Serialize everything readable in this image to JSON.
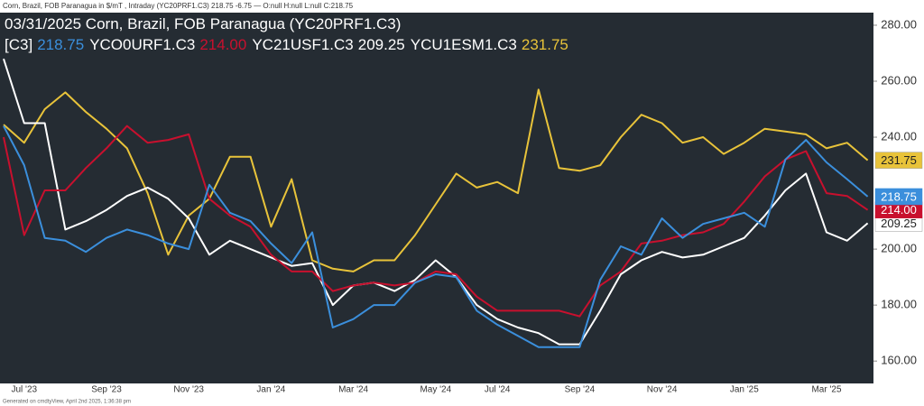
{
  "header": "Corn, Brazil, FOB Paranagua in $/mT , Intraday (YC20PRF1.C3) 218.75 -6.75 — O:null H:null L:null C:218.75",
  "footer": "Generated on cmdtyView, April 2nd 2025, 1:36:38 pm",
  "chart_data": {
    "type": "line",
    "categories": [
      null,
      "Jul '23",
      null,
      null,
      null,
      "Sep '23",
      null,
      null,
      null,
      "Nov '23",
      null,
      null,
      null,
      "Jan '24",
      null,
      null,
      null,
      "Mar '24",
      null,
      null,
      null,
      "May '24",
      null,
      null,
      "Jul '24",
      null,
      null,
      null,
      "Sep '24",
      null,
      null,
      null,
      "Nov '24",
      null,
      null,
      null,
      "Jan '25",
      null,
      null,
      null,
      "Mar '25",
      null,
      null
    ],
    "ylim": [
      152,
      284.5
    ],
    "yticks": [
      {
        "value": 160,
        "label": "160.00"
      },
      {
        "value": 180,
        "label": "180.00"
      },
      {
        "value": 200,
        "label": "200.00"
      },
      {
        "value": 240,
        "label": "240.00"
      },
      {
        "value": 260,
        "label": "260.00"
      },
      {
        "value": 280,
        "label": "280.00"
      }
    ],
    "series": [
      {
        "name": "03/31/2025 Corn, Brazil, FOB Paranagua (YC20PRF1.C3) [C3]",
        "color": "#3b8fdc",
        "values": [
          244,
          230,
          204,
          203,
          199,
          204,
          207,
          205,
          202,
          200,
          223,
          213,
          210,
          202,
          195,
          206,
          172,
          175,
          180,
          180,
          188,
          191,
          190,
          178,
          173,
          169,
          165,
          165,
          165,
          189,
          201,
          198,
          211,
          204,
          209,
          211,
          213,
          208,
          232,
          239,
          231,
          225,
          218.75
        ],
        "value_labels": [
          null,
          null,
          null,
          null,
          null,
          null,
          null,
          null,
          null,
          null,
          null,
          null,
          null,
          null,
          null,
          null,
          null,
          null,
          null,
          null,
          null,
          null,
          null,
          null,
          null,
          null,
          null,
          null,
          null,
          null,
          null,
          null,
          null,
          null,
          null,
          null,
          null,
          null,
          null,
          null,
          null,
          null,
          "218.75"
        ]
      },
      {
        "name": "YCO0URF1.C3",
        "color": "#c8102e",
        "values": [
          240,
          205,
          221,
          221,
          229,
          236,
          244,
          238,
          239,
          241,
          218,
          212,
          208,
          198,
          192,
          192,
          185,
          187,
          188,
          187,
          188,
          192,
          191,
          183,
          178,
          178,
          178,
          178,
          176,
          187,
          192,
          202,
          203,
          205,
          206,
          209,
          217,
          226,
          232,
          235,
          220,
          219,
          214
        ],
        "value_labels": [
          null,
          null,
          null,
          null,
          null,
          null,
          null,
          null,
          null,
          null,
          null,
          null,
          null,
          null,
          null,
          null,
          null,
          null,
          null,
          null,
          null,
          null,
          null,
          null,
          null,
          null,
          null,
          null,
          null,
          null,
          null,
          null,
          null,
          null,
          null,
          null,
          null,
          null,
          null,
          null,
          null,
          null,
          "214.00"
        ]
      },
      {
        "name": "YC21USF1.C3",
        "color": "#ffffff",
        "values": [
          268,
          245,
          245,
          207,
          210,
          214,
          219,
          222,
          218,
          211,
          198,
          203,
          200,
          197,
          194,
          195,
          180,
          187,
          188,
          185,
          189,
          196,
          190,
          180,
          175,
          172,
          170,
          166,
          166,
          178,
          191,
          196,
          199,
          197,
          198,
          201,
          204,
          212,
          221,
          227,
          206,
          203,
          209.25
        ],
        "value_labels": [
          null,
          null,
          null,
          null,
          null,
          null,
          null,
          null,
          null,
          null,
          null,
          null,
          null,
          null,
          null,
          null,
          null,
          null,
          null,
          null,
          null,
          null,
          null,
          null,
          null,
          null,
          null,
          null,
          null,
          null,
          null,
          null,
          null,
          null,
          null,
          null,
          null,
          null,
          null,
          null,
          null,
          null,
          "209.25"
        ]
      },
      {
        "name": "YCU1ESM1.C3",
        "color": "#e8c33a",
        "values": [
          244.5,
          238,
          250,
          256,
          249,
          243,
          236,
          220,
          198,
          212,
          218,
          233,
          233,
          208,
          225,
          196,
          193,
          192,
          196,
          196,
          205,
          216,
          227,
          222,
          224,
          220,
          257,
          229,
          228,
          230,
          240,
          248,
          245,
          238,
          240,
          234,
          238,
          243,
          242,
          241,
          236,
          238,
          231.75
        ],
        "value_labels": [
          null,
          null,
          null,
          null,
          null,
          null,
          null,
          null,
          null,
          null,
          null,
          null,
          null,
          null,
          null,
          null,
          null,
          null,
          null,
          null,
          null,
          null,
          null,
          null,
          null,
          null,
          null,
          null,
          null,
          null,
          null,
          null,
          null,
          null,
          null,
          null,
          null,
          null,
          null,
          null,
          null,
          null,
          "231.75"
        ]
      }
    ]
  }
}
